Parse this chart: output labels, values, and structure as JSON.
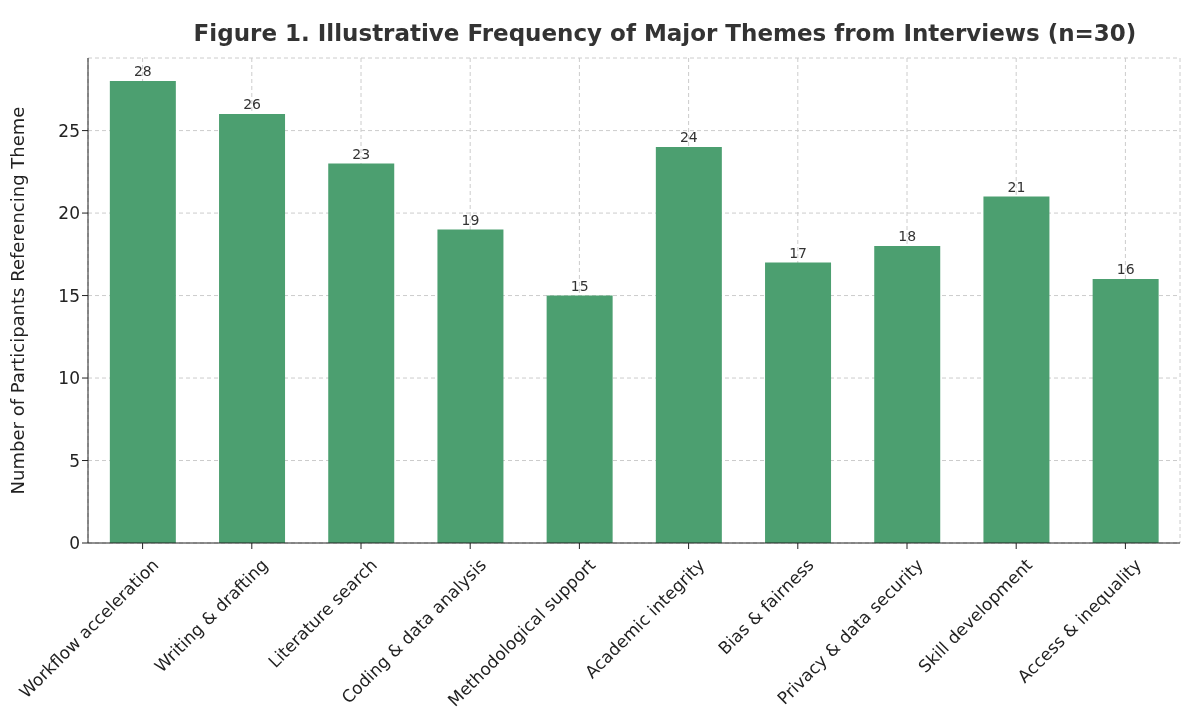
{
  "chart_data": {
    "type": "bar",
    "title": "Figure 1. Illustrative Frequency of Major Themes from Interviews (n=30)",
    "ylabel": "Number of Participants Referencing Theme",
    "categories": [
      "Workflow acceleration",
      "Writing & drafting",
      "Literature search",
      "Coding & data analysis",
      "Methodological support",
      "Academic integrity",
      "Bias & fairness",
      "Privacy & data security",
      "Skill development",
      "Access & inequality"
    ],
    "values": [
      28,
      26,
      23,
      19,
      15,
      24,
      17,
      18,
      21,
      16
    ],
    "color": "#4c9f70",
    "ylim": [
      0,
      29.4
    ],
    "yticks": [
      0,
      5,
      10,
      15,
      20,
      25
    ],
    "grid": true,
    "data_labels": true
  }
}
